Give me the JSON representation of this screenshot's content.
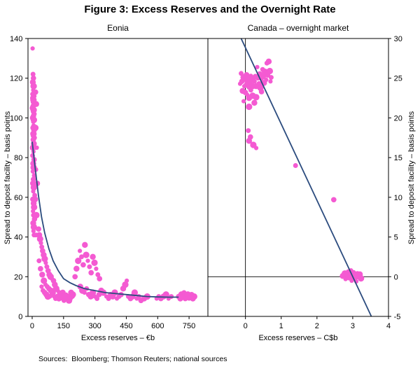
{
  "title": "Figure 3: Excess Reserves and the Overnight Rate",
  "sources": "Sources:  Bloomberg; Thomson Reuters; national sources",
  "colors": {
    "dot": "#f45ad2",
    "line": "#2b4b7e",
    "frame": "#000000"
  },
  "chart_data": [
    {
      "type": "scatter",
      "title": "Eonia",
      "xlabel": "Excess reserves – €b",
      "ylabel": "Spread to deposit facility – basis points",
      "ylabel_side": "left",
      "xlim": [
        -20,
        840
      ],
      "ylim": [
        0,
        140
      ],
      "xticks": [
        0,
        150,
        300,
        450,
        600,
        750
      ],
      "yticks": [
        0,
        20,
        40,
        60,
        80,
        100,
        120,
        140
      ],
      "grid": false,
      "legend": "none",
      "fit_curve": [
        [
          0,
          88
        ],
        [
          15,
          74
        ],
        [
          30,
          61
        ],
        [
          45,
          50
        ],
        [
          60,
          42
        ],
        [
          80,
          34
        ],
        [
          100,
          28
        ],
        [
          125,
          23
        ],
        [
          150,
          19
        ],
        [
          180,
          17
        ],
        [
          210,
          15.5
        ],
        [
          250,
          14
        ],
        [
          300,
          13
        ],
        [
          350,
          12
        ],
        [
          400,
          11.5
        ],
        [
          450,
          11
        ],
        [
          500,
          10.5
        ],
        [
          550,
          10
        ],
        [
          600,
          9.8
        ],
        [
          650,
          9.7
        ],
        [
          700,
          9.7
        ]
      ],
      "points": [
        [
          2,
          135
        ],
        [
          4,
          122
        ],
        [
          6,
          120
        ],
        [
          3,
          118
        ],
        [
          7,
          116
        ],
        [
          5,
          114
        ],
        [
          2,
          112
        ],
        [
          8,
          111
        ],
        [
          4,
          110
        ],
        [
          6,
          109
        ],
        [
          3,
          108
        ],
        [
          9,
          107
        ],
        [
          5,
          106
        ],
        [
          2,
          105
        ],
        [
          7,
          104
        ],
        [
          4,
          103
        ],
        [
          10,
          102
        ],
        [
          6,
          101
        ],
        [
          3,
          100
        ],
        [
          8,
          99
        ],
        [
          5,
          98
        ],
        [
          7,
          96
        ],
        [
          4,
          95
        ],
        [
          9,
          94
        ],
        [
          6,
          92
        ],
        [
          3,
          91
        ],
        [
          11,
          90
        ],
        [
          5,
          89
        ],
        [
          8,
          87
        ],
        [
          4,
          85
        ],
        [
          6,
          83
        ],
        [
          2,
          81
        ],
        [
          9,
          79
        ],
        [
          5,
          77
        ],
        [
          7,
          75
        ],
        [
          3,
          73
        ],
        [
          10,
          71
        ],
        [
          6,
          69
        ],
        [
          4,
          67
        ],
        [
          8,
          65
        ],
        [
          5,
          63
        ],
        [
          12,
          61
        ],
        [
          3,
          59
        ],
        [
          7,
          57
        ],
        [
          9,
          55
        ],
        [
          4,
          53
        ],
        [
          6,
          51
        ],
        [
          11,
          49
        ],
        [
          5,
          47
        ],
        [
          8,
          45
        ],
        [
          6,
          43
        ],
        [
          9,
          41
        ],
        [
          16,
          113
        ],
        [
          19,
          107
        ],
        [
          15,
          95
        ],
        [
          22,
          85
        ],
        [
          17,
          74
        ],
        [
          25,
          67
        ],
        [
          14,
          59
        ],
        [
          20,
          51
        ],
        [
          27,
          44
        ],
        [
          18,
          41
        ],
        [
          31,
          44
        ],
        [
          34,
          41
        ],
        [
          38,
          39
        ],
        [
          42,
          37
        ],
        [
          46,
          35
        ],
        [
          50,
          33
        ],
        [
          55,
          31
        ],
        [
          60,
          29
        ],
        [
          65,
          27
        ],
        [
          70,
          25
        ],
        [
          76,
          23
        ],
        [
          82,
          21
        ],
        [
          88,
          20
        ],
        [
          94,
          19
        ],
        [
          33,
          28
        ],
        [
          40,
          24
        ],
        [
          48,
          21
        ],
        [
          56,
          18
        ],
        [
          64,
          16
        ],
        [
          72,
          15
        ],
        [
          80,
          14
        ],
        [
          90,
          13
        ],
        [
          98,
          12
        ],
        [
          45,
          15
        ],
        [
          52,
          13
        ],
        [
          60,
          12
        ],
        [
          68,
          11
        ],
        [
          75,
          10
        ],
        [
          85,
          10
        ],
        [
          95,
          11
        ],
        [
          102,
          18
        ],
        [
          108,
          16
        ],
        [
          115,
          14
        ],
        [
          122,
          13
        ],
        [
          130,
          12
        ],
        [
          138,
          11
        ],
        [
          146,
          12
        ],
        [
          154,
          10
        ],
        [
          162,
          11
        ],
        [
          170,
          9
        ],
        [
          178,
          10
        ],
        [
          186,
          12
        ],
        [
          194,
          11
        ],
        [
          105,
          10
        ],
        [
          112,
          9
        ],
        [
          120,
          10
        ],
        [
          128,
          9
        ],
        [
          136,
          10
        ],
        [
          144,
          9
        ],
        [
          152,
          8
        ],
        [
          160,
          9
        ],
        [
          168,
          10
        ],
        [
          176,
          8
        ],
        [
          184,
          9
        ],
        [
          192,
          10
        ],
        [
          205,
          20
        ],
        [
          212,
          24
        ],
        [
          220,
          28
        ],
        [
          228,
          33
        ],
        [
          236,
          30
        ],
        [
          244,
          26
        ],
        [
          252,
          36
        ],
        [
          258,
          31
        ],
        [
          266,
          28
        ],
        [
          274,
          25
        ],
        [
          282,
          22
        ],
        [
          290,
          30
        ],
        [
          298,
          27
        ],
        [
          306,
          24
        ],
        [
          314,
          21
        ],
        [
          322,
          19
        ],
        [
          230,
          15
        ],
        [
          240,
          13
        ],
        [
          250,
          12
        ],
        [
          260,
          14
        ],
        [
          270,
          11
        ],
        [
          280,
          10
        ],
        [
          290,
          12
        ],
        [
          300,
          10
        ],
        [
          310,
          9
        ],
        [
          320,
          11
        ],
        [
          330,
          13
        ],
        [
          340,
          12
        ],
        [
          355,
          10
        ],
        [
          365,
          9
        ],
        [
          375,
          11
        ],
        [
          385,
          10
        ],
        [
          395,
          12
        ],
        [
          405,
          9
        ],
        [
          415,
          10
        ],
        [
          425,
          11
        ],
        [
          435,
          14
        ],
        [
          445,
          16
        ],
        [
          452,
          18
        ],
        [
          460,
          10
        ],
        [
          470,
          9
        ],
        [
          480,
          10
        ],
        [
          490,
          12
        ],
        [
          500,
          9
        ],
        [
          510,
          10
        ],
        [
          520,
          8
        ],
        [
          535,
          9
        ],
        [
          550,
          10
        ],
        [
          595,
          9
        ],
        [
          605,
          10
        ],
        [
          615,
          9
        ],
        [
          628,
          10
        ],
        [
          640,
          11
        ],
        [
          652,
          9
        ],
        [
          665,
          10
        ],
        [
          700,
          10
        ],
        [
          708,
          9
        ],
        [
          714,
          11
        ],
        [
          720,
          10
        ],
        [
          726,
          12
        ],
        [
          732,
          9
        ],
        [
          738,
          10
        ],
        [
          744,
          11
        ],
        [
          750,
          9
        ],
        [
          756,
          10
        ],
        [
          762,
          11
        ],
        [
          768,
          9
        ],
        [
          774,
          10
        ]
      ]
    },
    {
      "type": "scatter",
      "title": "Canada – overnight market",
      "xlabel": "Excess reserves – C$b",
      "ylabel": "Spread to deposit facility – basis points",
      "ylabel_side": "right",
      "xlim": [
        -1.05,
        4
      ],
      "ylim": [
        -5,
        30
      ],
      "xticks": [
        0,
        1,
        2,
        3,
        4
      ],
      "yticks": [
        -5,
        0,
        5,
        10,
        15,
        20,
        25,
        30
      ],
      "grid": false,
      "legend": "none",
      "zero_lines": {
        "x": 0,
        "y": 0
      },
      "fit_line": [
        [
          -0.12,
          30
        ],
        [
          3.52,
          -5
        ]
      ],
      "points": [
        [
          -0.15,
          24.3
        ],
        [
          -0.12,
          25.6
        ],
        [
          -0.1,
          24.6
        ],
        [
          -0.08,
          23.4
        ],
        [
          -0.05,
          25.1
        ],
        [
          -0.03,
          24.0
        ],
        [
          0,
          24.8
        ],
        [
          0,
          23.2
        ],
        [
          0.03,
          25.4
        ],
        [
          0.05,
          24.2
        ],
        [
          0.05,
          22.9
        ],
        [
          0.08,
          25.0
        ],
        [
          0.1,
          23.9
        ],
        [
          0.1,
          22.5
        ],
        [
          0.12,
          24.7
        ],
        [
          0.15,
          25.3
        ],
        [
          0.15,
          23.5
        ],
        [
          0.18,
          24.1
        ],
        [
          0.2,
          25.0
        ],
        [
          0.2,
          22.8
        ],
        [
          0.22,
          23.9
        ],
        [
          0.25,
          24.6
        ],
        [
          0.28,
          25.2
        ],
        [
          0.3,
          24.0
        ],
        [
          0.3,
          22.6
        ],
        [
          0.33,
          26.4
        ],
        [
          0.35,
          25.0
        ],
        [
          0.38,
          24.3
        ],
        [
          0.4,
          25.5
        ],
        [
          0.42,
          23.8
        ],
        [
          0.45,
          24.9
        ],
        [
          0.48,
          26.1
        ],
        [
          0.5,
          25.2
        ],
        [
          0.52,
          24.4
        ],
        [
          0.55,
          25.8
        ],
        [
          0.58,
          24.8
        ],
        [
          0.6,
          26.9
        ],
        [
          0.62,
          25.4
        ],
        [
          0.65,
          27.1
        ],
        [
          0.68,
          25.9
        ],
        [
          0.7,
          24.6
        ],
        [
          0.72,
          25.1
        ],
        [
          0.45,
          23.3
        ],
        [
          0.25,
          21.9
        ],
        [
          0.1,
          21.4
        ],
        [
          -0.05,
          22.1
        ],
        [
          0.08,
          18.4
        ],
        [
          0.14,
          17.6
        ],
        [
          0.1,
          17.1
        ],
        [
          0.22,
          16.6
        ],
        [
          0.3,
          16.2
        ],
        [
          1.4,
          14
        ],
        [
          2.47,
          9.7
        ],
        [
          2.72,
          0.1
        ],
        [
          2.78,
          0.4
        ],
        [
          2.8,
          -0.3
        ],
        [
          2.84,
          0.2
        ],
        [
          2.88,
          0.6
        ],
        [
          2.9,
          -0.1
        ],
        [
          2.94,
          0.3
        ],
        [
          2.97,
          -0.5
        ],
        [
          3.0,
          0.1
        ],
        [
          3.02,
          0.5
        ],
        [
          3.05,
          -0.2
        ],
        [
          3.08,
          0.2
        ],
        [
          3.1,
          -0.6
        ],
        [
          3.13,
          0.4
        ],
        [
          3.16,
          0
        ],
        [
          3.2,
          0.3
        ],
        [
          3.23,
          -0.2
        ],
        [
          2.95,
          0.8
        ]
      ]
    }
  ]
}
